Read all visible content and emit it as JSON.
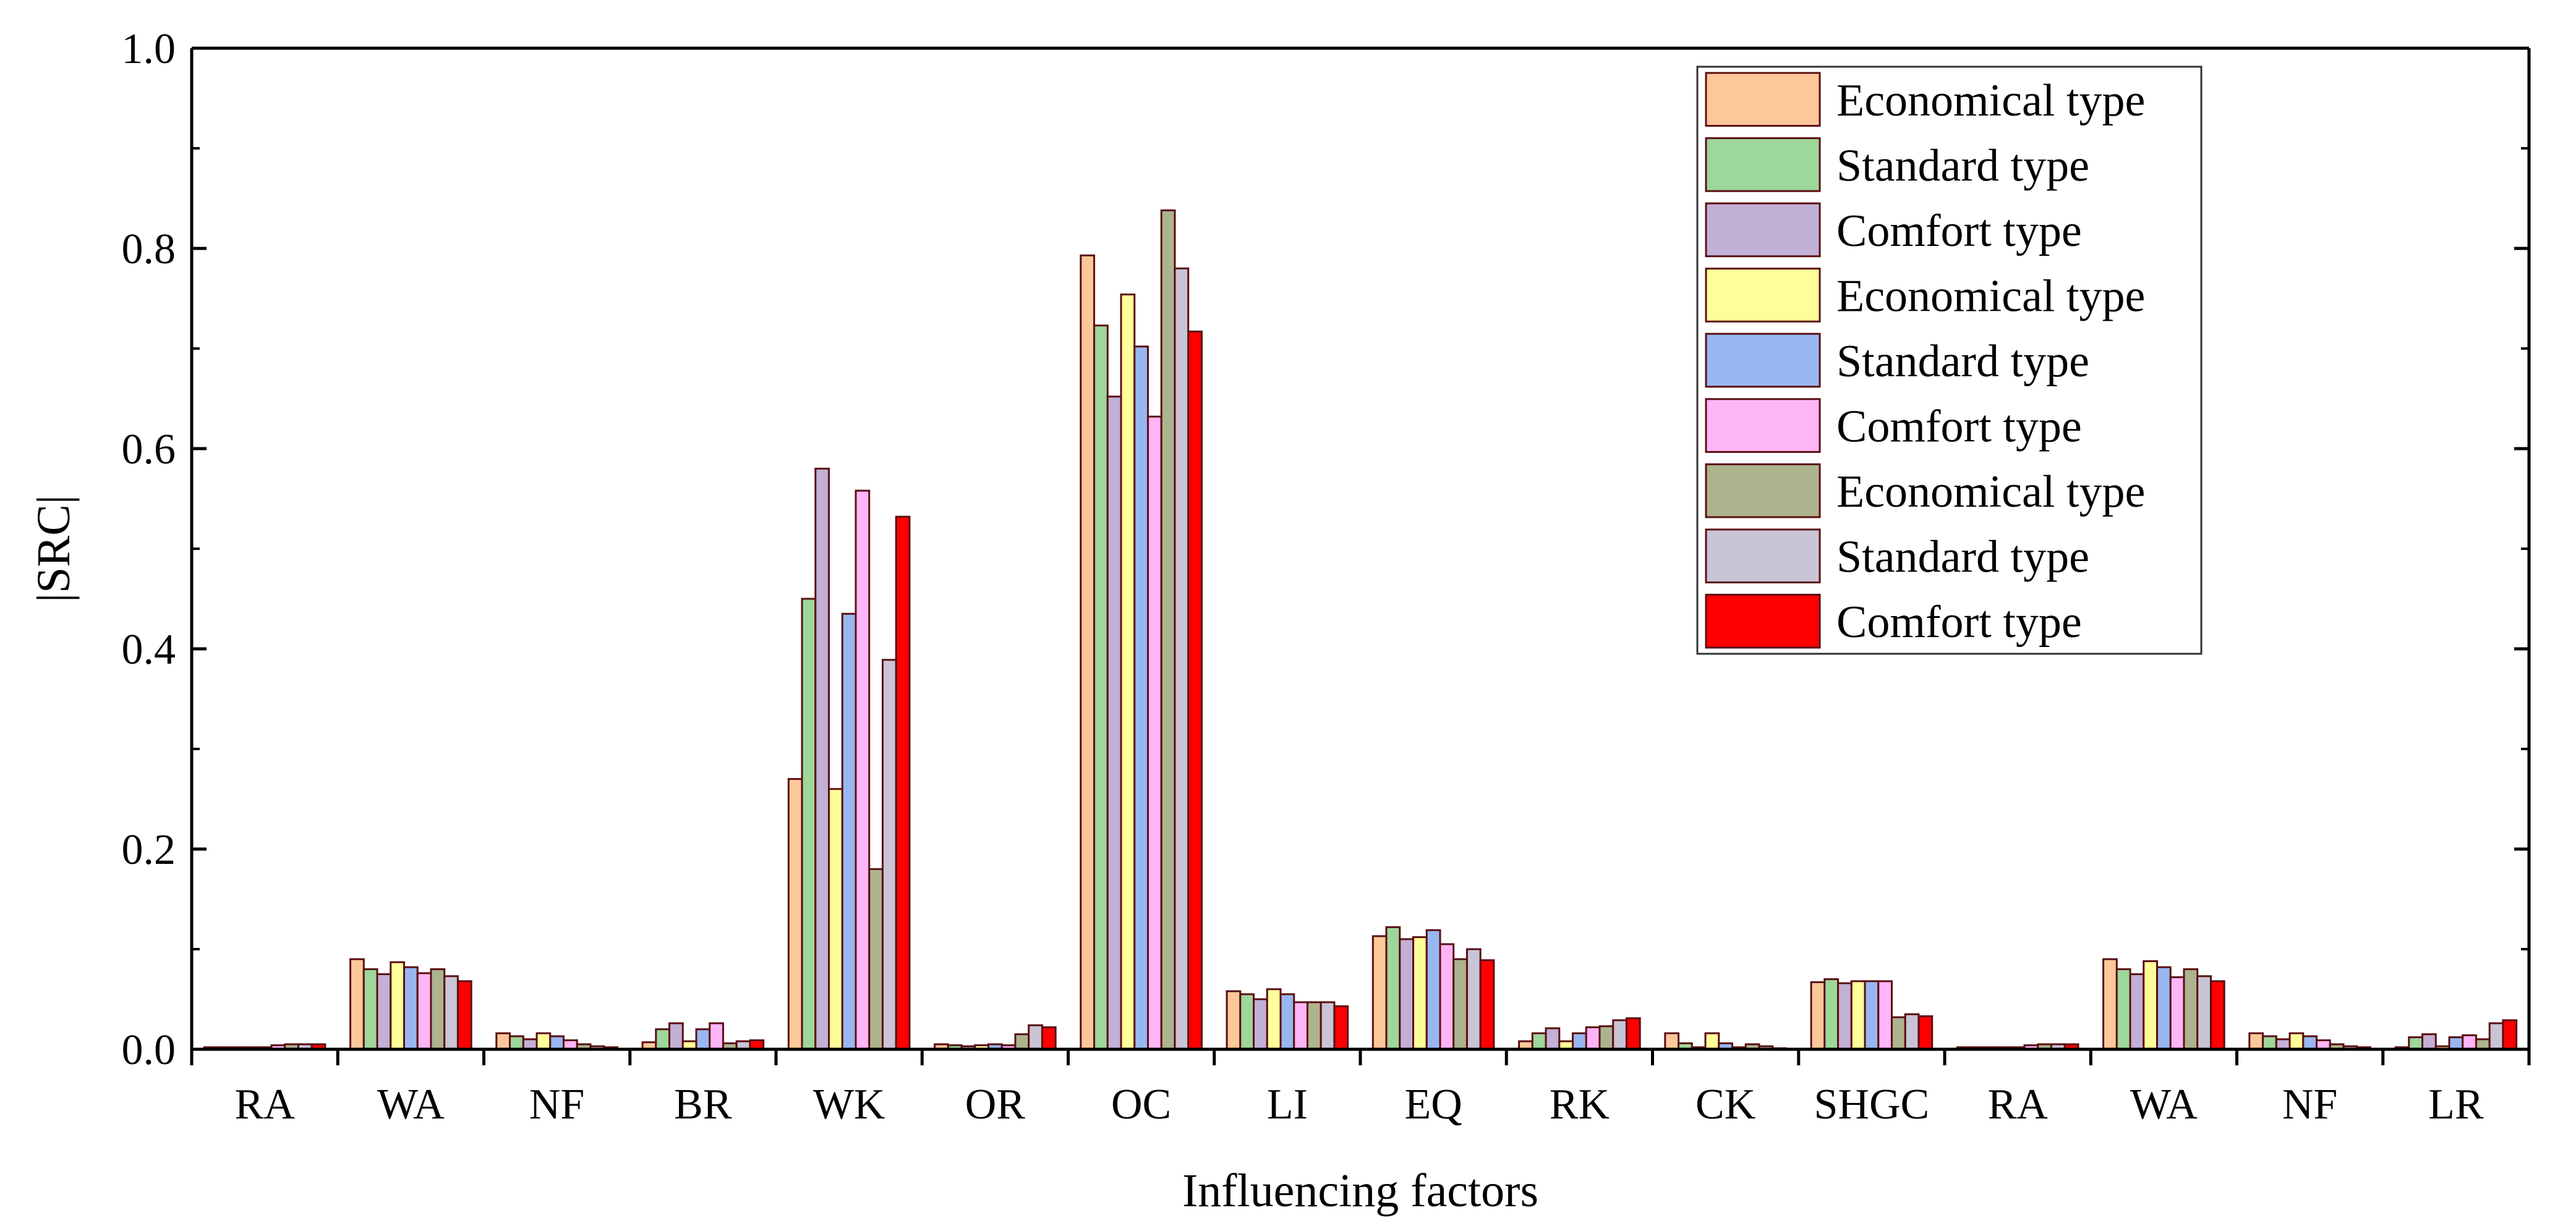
{
  "chart_data": {
    "type": "bar",
    "title": "",
    "xlabel": "Influencing factors",
    "ylabel": "|SRC|",
    "ylim": [
      0,
      1.0
    ],
    "yticks": [
      "0.0",
      "0.2",
      "0.4",
      "0.6",
      "0.8",
      "1.0"
    ],
    "ytick_values": [
      0,
      0.2,
      0.4,
      0.6,
      0.8,
      1.0
    ],
    "legend_position": "top-right",
    "categories": [
      "RA",
      "WA",
      "NF",
      "BR",
      "WK",
      "OR",
      "OC",
      "LI",
      "EQ",
      "RK",
      "CK",
      "SHGC",
      "RA",
      "WA",
      "NF",
      "LR"
    ],
    "series": [
      {
        "name": "Economical type",
        "color": "#FCC89A",
        "values": [
          0.002,
          0.09,
          0.016,
          0.007,
          0.27,
          0.005,
          0.793,
          0.058,
          0.113,
          0.008,
          0.016,
          0.067,
          0.002,
          0.09,
          0.016,
          0.002
        ]
      },
      {
        "name": "Standard type",
        "color": "#9DD79A",
        "values": [
          0.002,
          0.08,
          0.013,
          0.02,
          0.45,
          0.004,
          0.723,
          0.055,
          0.122,
          0.016,
          0.006,
          0.07,
          0.002,
          0.08,
          0.013,
          0.012
        ]
      },
      {
        "name": "Comfort type",
        "color": "#C2B0D6",
        "values": [
          0.002,
          0.075,
          0.01,
          0.026,
          0.58,
          0.003,
          0.652,
          0.05,
          0.11,
          0.021,
          0.002,
          0.066,
          0.002,
          0.075,
          0.01,
          0.015
        ]
      },
      {
        "name": "Economical type",
        "color": "#FFFF99",
        "values": [
          0.002,
          0.087,
          0.016,
          0.008,
          0.26,
          0.004,
          0.754,
          0.06,
          0.112,
          0.008,
          0.016,
          0.068,
          0.002,
          0.088,
          0.016,
          0.003
        ]
      },
      {
        "name": "Standard type",
        "color": "#98B7F1",
        "values": [
          0.002,
          0.082,
          0.013,
          0.02,
          0.435,
          0.005,
          0.702,
          0.055,
          0.119,
          0.016,
          0.006,
          0.068,
          0.002,
          0.082,
          0.013,
          0.012
        ]
      },
      {
        "name": "Comfort type",
        "color": "#FDB5F7",
        "values": [
          0.004,
          0.076,
          0.009,
          0.026,
          0.558,
          0.004,
          0.632,
          0.047,
          0.105,
          0.022,
          0.002,
          0.068,
          0.004,
          0.072,
          0.009,
          0.014
        ]
      },
      {
        "name": "Economical type",
        "color": "#ACB48E",
        "values": [
          0.005,
          0.08,
          0.005,
          0.006,
          0.18,
          0.015,
          0.838,
          0.047,
          0.09,
          0.023,
          0.005,
          0.032,
          0.005,
          0.08,
          0.005,
          0.01
        ]
      },
      {
        "name": "Standard type",
        "color": "#C9C4D6",
        "values": [
          0.005,
          0.073,
          0.003,
          0.008,
          0.389,
          0.024,
          0.78,
          0.047,
          0.1,
          0.029,
          0.003,
          0.035,
          0.005,
          0.073,
          0.003,
          0.026
        ]
      },
      {
        "name": "Comfort type",
        "color": "#FF0000",
        "values": [
          0.005,
          0.068,
          0.002,
          0.009,
          0.532,
          0.022,
          0.717,
          0.043,
          0.089,
          0.031,
          0.001,
          0.033,
          0.005,
          0.068,
          0.002,
          0.029
        ]
      }
    ]
  }
}
